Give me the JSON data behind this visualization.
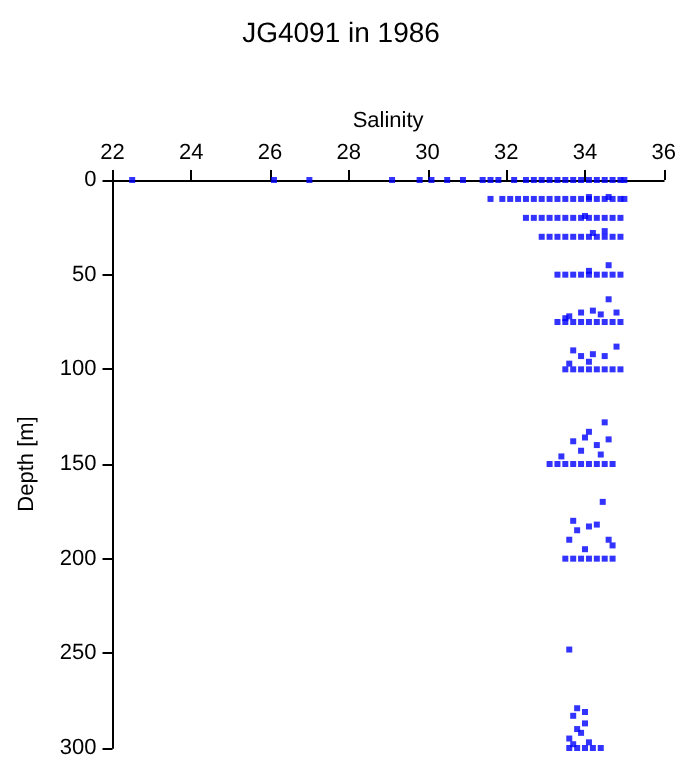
{
  "chart_data": {
    "type": "scatter",
    "title": "JG4091 in 1986",
    "xlabel": "Salinity",
    "ylabel": "Depth [m]",
    "xlim": [
      22,
      36
    ],
    "xticks": [
      22,
      24,
      26,
      28,
      30,
      32,
      34,
      36
    ],
    "ylim": [
      300,
      0
    ],
    "yticks": [
      0,
      50,
      100,
      150,
      200,
      250,
      300
    ],
    "grid": false,
    "marker": "square",
    "series": [
      {
        "color": "#0000ff",
        "x": [
          22.5,
          26.1,
          27.0,
          29.1,
          29.8,
          30.1,
          30.5,
          30.9,
          31.4,
          31.6,
          31.8,
          32.2,
          32.5,
          32.7,
          32.9,
          33.1,
          33.3,
          33.5,
          33.7,
          33.9,
          34.1,
          34.3,
          34.5,
          34.7,
          34.9,
          35.0,
          31.6,
          31.9,
          32.1,
          32.3,
          32.5,
          32.7,
          32.9,
          33.1,
          33.3,
          33.5,
          33.7,
          33.9,
          34.1,
          34.3,
          34.5,
          34.7,
          34.9,
          35.0,
          34.1,
          34.6,
          32.5,
          32.7,
          32.9,
          33.1,
          33.3,
          33.5,
          33.7,
          33.9,
          34.1,
          34.3,
          34.5,
          34.7,
          34.9,
          34.0,
          32.9,
          33.1,
          33.3,
          33.5,
          33.7,
          33.9,
          34.1,
          34.3,
          34.5,
          34.7,
          34.9,
          34.2,
          34.5,
          33.3,
          33.5,
          33.7,
          33.9,
          34.1,
          34.3,
          34.5,
          34.7,
          34.9,
          34.6,
          34.1,
          33.3,
          33.5,
          33.7,
          33.9,
          34.1,
          34.3,
          34.5,
          34.7,
          34.9,
          33.6,
          33.9,
          34.2,
          34.4,
          34.6,
          34.8,
          33.5,
          33.5,
          33.7,
          33.9,
          34.1,
          34.3,
          34.5,
          34.7,
          34.9,
          33.7,
          33.9,
          34.2,
          34.5,
          34.8,
          34.1,
          33.6,
          33.3,
          33.5,
          33.7,
          33.9,
          34.1,
          34.3,
          34.5,
          34.7,
          34.5,
          33.4,
          33.1,
          33.7,
          34.0,
          34.3,
          34.6,
          33.9,
          34.4,
          34.1,
          33.5,
          33.7,
          33.9,
          34.1,
          34.3,
          34.5,
          34.7,
          34.45,
          33.7,
          33.8,
          34.1,
          34.3,
          34.6,
          34.7,
          33.6,
          34.0,
          33.6,
          33.8,
          34.0,
          34.2,
          34.4,
          33.6,
          33.8,
          33.7,
          34.0,
          33.9,
          33.6,
          34.1,
          33.8,
          34.0,
          33.7
        ],
        "values": [
          0,
          0,
          0,
          0,
          0,
          0,
          0,
          0,
          0,
          0,
          0,
          0,
          0,
          0,
          0,
          0,
          0,
          0,
          0,
          0,
          0,
          0,
          0,
          0,
          0,
          0,
          10,
          10,
          10,
          10,
          10,
          10,
          10,
          10,
          10,
          10,
          10,
          10,
          10,
          10,
          10,
          10,
          10,
          10,
          9,
          9,
          20,
          20,
          20,
          20,
          20,
          20,
          20,
          20,
          20,
          20,
          20,
          20,
          20,
          19,
          30,
          30,
          30,
          30,
          30,
          30,
          30,
          30,
          30,
          30,
          30,
          28,
          27,
          50,
          50,
          50,
          50,
          50,
          50,
          50,
          50,
          50,
          45,
          48,
          75,
          75,
          75,
          75,
          75,
          75,
          75,
          75,
          75,
          72,
          70,
          69,
          71,
          63,
          70,
          73,
          100,
          100,
          100,
          100,
          100,
          100,
          100,
          100,
          90,
          93,
          92,
          93,
          88,
          96,
          97,
          150,
          150,
          150,
          150,
          150,
          150,
          150,
          150,
          128,
          146,
          150,
          138,
          136,
          140,
          137,
          143,
          145,
          133,
          200,
          200,
          200,
          200,
          200,
          200,
          200,
          170,
          180,
          185,
          183,
          182,
          190,
          193,
          190,
          195,
          300,
          300,
          300,
          300,
          300,
          248,
          279,
          283,
          287,
          292,
          295,
          297,
          290,
          281,
          298
        ]
      }
    ]
  }
}
